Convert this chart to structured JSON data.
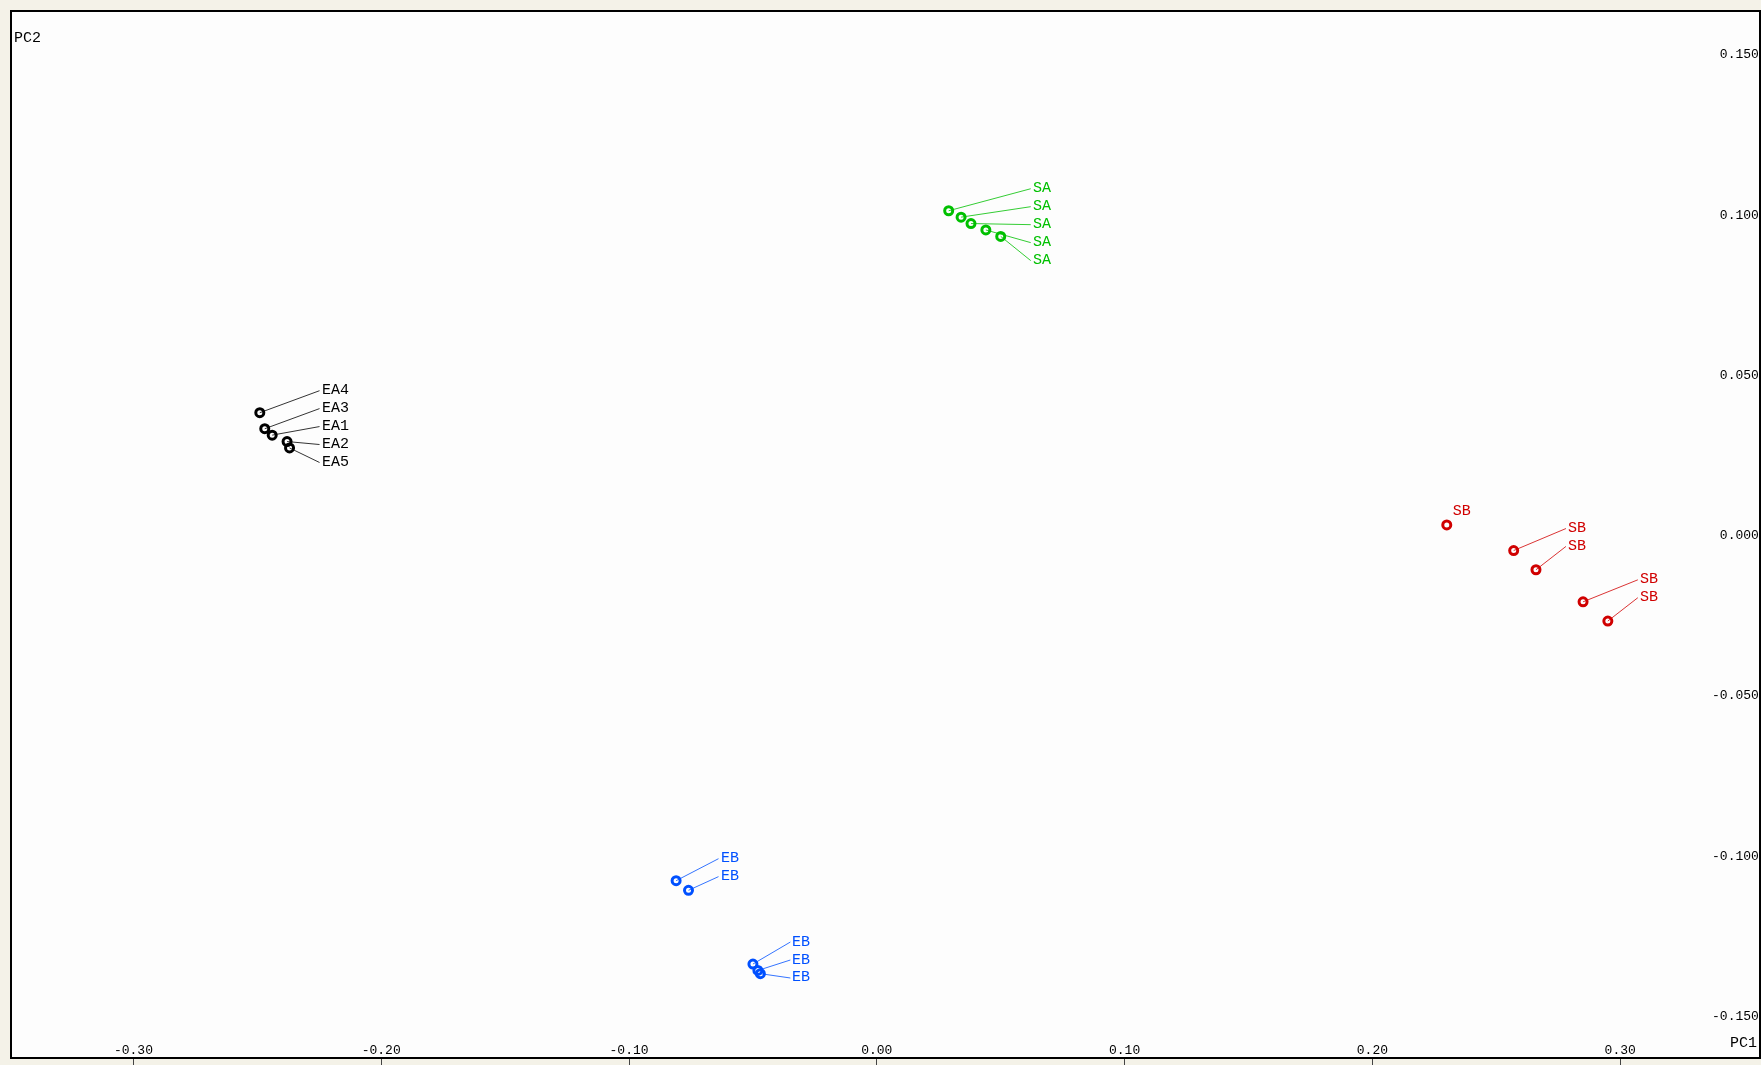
{
  "chart_data": {
    "type": "scatter",
    "xlabel": "PC1",
    "ylabel": "PC2",
    "marker": "circle",
    "xlim": [
      -0.349,
      0.356
    ],
    "ylim": [
      -0.163,
      0.163
    ],
    "xticks": [
      {
        "value": -0.3,
        "label": "-0.30"
      },
      {
        "value": -0.2,
        "label": "-0.20"
      },
      {
        "value": -0.1,
        "label": "-0.10"
      },
      {
        "value": 0,
        "label": "0.00"
      },
      {
        "value": 0.1,
        "label": "0.10"
      },
      {
        "value": 0.2,
        "label": "0.20"
      },
      {
        "value": 0.3,
        "label": "0.30"
      }
    ],
    "yticks": [
      {
        "value": 0.15,
        "label": "0.150"
      },
      {
        "value": 0.1,
        "label": "0.100"
      },
      {
        "value": 0.05,
        "label": "0.050"
      },
      {
        "value": 0,
        "label": "0.000"
      },
      {
        "value": -0.05,
        "label": "-0.050"
      },
      {
        "value": -0.1,
        "label": "-0.100"
      },
      {
        "value": -0.15,
        "label": "-0.150"
      }
    ],
    "series": [
      {
        "color": "#000000",
        "x": [
          -0.249,
          -0.247,
          -0.244,
          -0.238,
          -0.237
        ],
        "values": [
          0.038,
          0.033,
          0.031,
          0.029,
          0.027
        ],
        "value_labels": [
          "EA4",
          "EA3",
          "EA1",
          "EA2",
          "EA5"
        ]
      },
      {
        "color": "#00c000",
        "x": [
          0.029,
          0.034,
          0.038,
          0.044,
          0.05
        ],
        "values": [
          0.101,
          0.099,
          0.097,
          0.095,
          0.093
        ],
        "value_labels": [
          "SA",
          "SA",
          "SA",
          "SA",
          "SA"
        ]
      },
      {
        "color": "#d00000",
        "x": [
          0.23,
          0.257,
          0.266,
          0.285,
          0.295
        ],
        "values": [
          0.003,
          -0.005,
          -0.011,
          -0.021,
          -0.027
        ],
        "value_labels": [
          "SB",
          "SB",
          "SB",
          "SB",
          "SB"
        ]
      },
      {
        "color": "#0050ff",
        "x": [
          -0.081,
          -0.076,
          -0.05,
          -0.048,
          -0.047
        ],
        "values": [
          -0.108,
          -0.111,
          -0.134,
          -0.136,
          -0.137
        ],
        "value_labels": [
          "EB",
          "EB",
          "EB",
          "EB",
          "EB"
        ]
      }
    ]
  }
}
